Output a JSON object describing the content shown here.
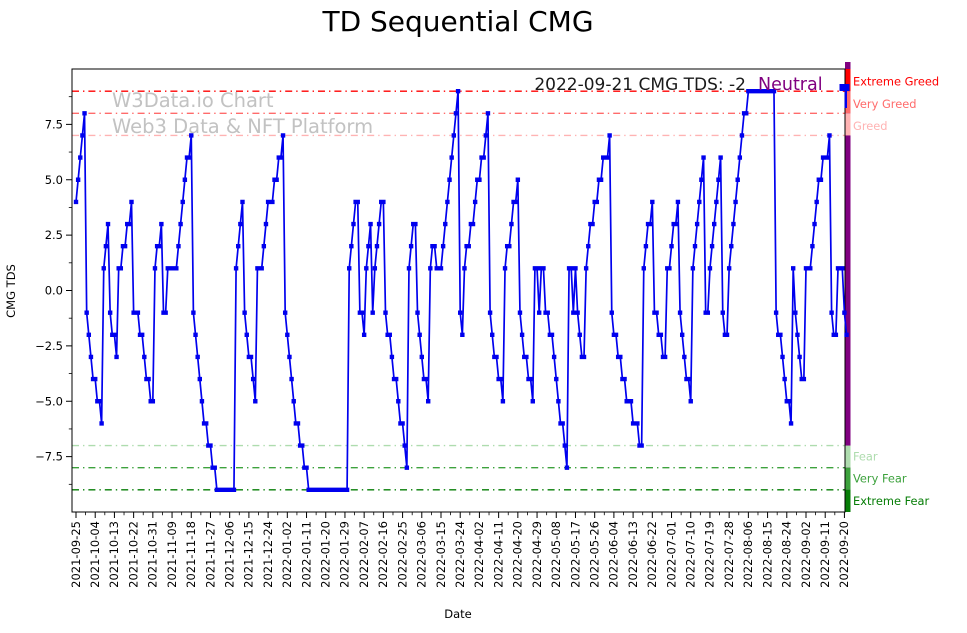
{
  "title": "TD Sequential CMG",
  "annotation": {
    "text": "2022-09-21 CMG TDS: -2",
    "status": "Neutral",
    "status_color": "#800080"
  },
  "watermark": {
    "line1": "W3Data.io Chart",
    "line2": "Web3 Data & NFT Platform"
  },
  "axes": {
    "y_label": "CMG TDS",
    "x_label": "Date"
  },
  "chart_data": {
    "type": "line",
    "series_name": "CMG TDS",
    "series_color": "#0000ee",
    "gauge_bar_color": "#800080",
    "start_date": "2021-09-25",
    "end_date": "2022-09-21",
    "x_tick_interval_days": 9,
    "x_tick_labels": [
      "2021-09-25",
      "2021-10-04",
      "2021-10-13",
      "2021-10-22",
      "2021-10-31",
      "2021-11-09",
      "2021-11-18",
      "2021-11-27",
      "2021-12-06",
      "2021-12-15",
      "2021-12-24",
      "2022-01-02",
      "2022-01-11",
      "2022-01-20",
      "2022-01-29",
      "2022-02-07",
      "2022-02-16",
      "2022-02-25",
      "2022-03-06",
      "2022-03-15",
      "2022-03-24",
      "2022-04-02",
      "2022-04-11",
      "2022-04-20",
      "2022-04-29",
      "2022-05-08",
      "2022-05-17",
      "2022-05-26",
      "2022-06-04",
      "2022-06-13",
      "2022-06-22",
      "2022-07-01",
      "2022-07-10",
      "2022-07-19",
      "2022-07-28",
      "2022-08-06",
      "2022-08-15",
      "2022-08-24",
      "2022-09-02",
      "2022-09-11",
      "2022-09-20"
    ],
    "y_tick_labels": [
      "7.5",
      "5.0",
      "2.5",
      "0.0",
      "-2.5",
      "-5.0",
      "-7.5"
    ],
    "ylim": [
      -10,
      10
    ],
    "grid": false,
    "ref_lines": [
      {
        "value": 9,
        "label": "Extreme Greed",
        "color": "#ff0000"
      },
      {
        "value": 8,
        "label": "Very Greed",
        "color": "#ff6b6b"
      },
      {
        "value": 7,
        "label": "Greed",
        "color": "#ffb3b3"
      },
      {
        "value": -7,
        "label": "Fear",
        "color": "#aedcae"
      },
      {
        "value": -8,
        "label": "Very Fear",
        "color": "#3da23d"
      },
      {
        "value": -9,
        "label": "Extreme Fear",
        "color": "#067d06"
      }
    ],
    "values": [
      4,
      5,
      6,
      7,
      8,
      -1,
      -2,
      -3,
      -4,
      -4,
      -5,
      -5,
      -6,
      1,
      2,
      3,
      -1,
      -2,
      -2,
      -3,
      1,
      1,
      2,
      2,
      3,
      3,
      4,
      -1,
      -1,
      -1,
      -2,
      -2,
      -3,
      -4,
      -4,
      -5,
      -5,
      1,
      2,
      2,
      3,
      -1,
      -1,
      1,
      1,
      1,
      1,
      1,
      2,
      3,
      4,
      5,
      6,
      6,
      7,
      -1,
      -2,
      -3,
      -4,
      -5,
      -6,
      -6,
      -7,
      -7,
      -8,
      -8,
      -9,
      -9,
      -9,
      -9,
      -9,
      -9,
      -9,
      -9,
      -9,
      1,
      2,
      3,
      4,
      -1,
      -2,
      -3,
      -3,
      -4,
      -5,
      1,
      1,
      1,
      2,
      3,
      4,
      4,
      4,
      5,
      5,
      6,
      6,
      7,
      -1,
      -2,
      -3,
      -4,
      -5,
      -6,
      -6,
      -7,
      -7,
      -8,
      -8,
      -9,
      -9,
      -9,
      -9,
      -9,
      -9,
      -9,
      -9,
      -9,
      -9,
      -9,
      -9,
      -9,
      -9,
      -9,
      -9,
      -9,
      -9,
      -9,
      1,
      2,
      3,
      4,
      4,
      -1,
      -1,
      -2,
      1,
      2,
      3,
      -1,
      1,
      2,
      3,
      4,
      4,
      -1,
      -2,
      -2,
      -3,
      -4,
      -4,
      -5,
      -6,
      -6,
      -7,
      -8,
      1,
      2,
      3,
      3,
      -1,
      -2,
      -3,
      -4,
      -4,
      -5,
      1,
      2,
      2,
      1,
      1,
      1,
      2,
      3,
      4,
      5,
      6,
      7,
      8,
      9,
      -1,
      -2,
      1,
      2,
      2,
      3,
      3,
      4,
      5,
      5,
      6,
      6,
      7,
      8,
      -1,
      -2,
      -3,
      -3,
      -4,
      -4,
      -5,
      1,
      2,
      2,
      3,
      4,
      4,
      5,
      -1,
      -2,
      -3,
      -3,
      -4,
      -4,
      -5,
      1,
      1,
      -1,
      1,
      1,
      -1,
      -1,
      -2,
      -2,
      -3,
      -4,
      -5,
      -6,
      -6,
      -7,
      -8,
      1,
      1,
      -1,
      1,
      -1,
      -2,
      -3,
      -3,
      1,
      2,
      3,
      3,
      4,
      4,
      5,
      5,
      6,
      6,
      6,
      7,
      -1,
      -2,
      -2,
      -3,
      -3,
      -4,
      -4,
      -5,
      -5,
      -5,
      -6,
      -6,
      -6,
      -7,
      -7,
      1,
      2,
      3,
      3,
      4,
      -1,
      -1,
      -2,
      -2,
      -3,
      -3,
      1,
      1,
      2,
      3,
      3,
      4,
      -1,
      -2,
      -3,
      -4,
      -4,
      -5,
      1,
      2,
      3,
      4,
      5,
      6,
      -1,
      -1,
      1,
      2,
      3,
      4,
      5,
      6,
      -1,
      -2,
      -2,
      1,
      2,
      3,
      4,
      5,
      6,
      7,
      8,
      8,
      9,
      9,
      9,
      9,
      9,
      9,
      9,
      9,
      9,
      9,
      9,
      9,
      9,
      -1,
      -2,
      -2,
      -3,
      -4,
      -5,
      -5,
      -6,
      1,
      -1,
      -2,
      -3,
      -4,
      -4,
      1,
      1,
      1,
      2,
      3,
      4,
      5,
      5,
      6,
      6,
      6,
      7,
      -1,
      -2,
      -2,
      1,
      1,
      1,
      -1,
      -2
    ]
  }
}
